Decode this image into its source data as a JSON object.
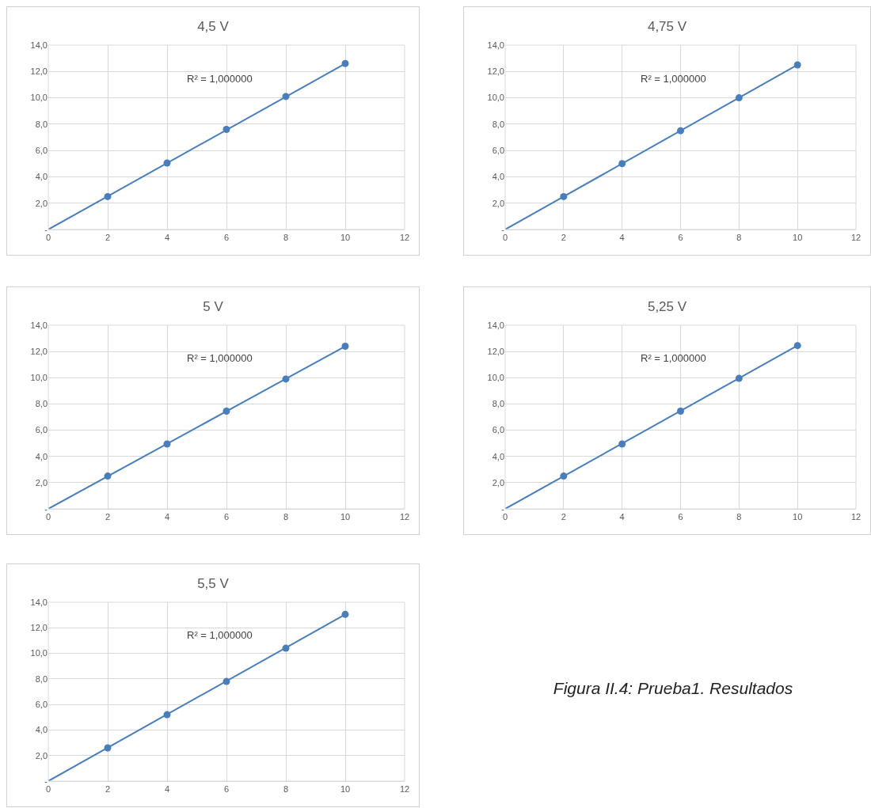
{
  "chart_data": [
    {
      "type": "scatter",
      "title": "4,5 V",
      "grid": true,
      "xlim": [
        0,
        12
      ],
      "xticks": [
        0,
        2,
        4,
        6,
        8,
        10,
        12
      ],
      "ylim": [
        0,
        14
      ],
      "yticks": [
        {
          "value": 0,
          "label": "-"
        },
        {
          "value": 2,
          "label": "2,0"
        },
        {
          "value": 4,
          "label": "4,0"
        },
        {
          "value": 6,
          "label": "6,0"
        },
        {
          "value": 8,
          "label": "8,0"
        },
        {
          "value": 10,
          "label": "10,0"
        },
        {
          "value": 12,
          "label": "12,0"
        },
        {
          "value": 14,
          "label": "14,0"
        }
      ],
      "annotations": [
        "R² = 1,000000"
      ],
      "series": [
        {
          "marker": "circle",
          "color": "#4a7ebb",
          "x": [
            2,
            4,
            6,
            8,
            10
          ],
          "values": [
            2.5,
            5.05,
            7.6,
            10.1,
            12.6
          ]
        },
        {
          "type": "line",
          "marker": "none",
          "color": "#4a7ebb",
          "x": [
            0,
            10
          ],
          "values": [
            0,
            12.6
          ]
        }
      ]
    },
    {
      "type": "scatter",
      "title": "4,75 V",
      "grid": true,
      "xlim": [
        0,
        12
      ],
      "xticks": [
        0,
        2,
        4,
        6,
        8,
        10,
        12
      ],
      "ylim": [
        0,
        14
      ],
      "yticks": [
        {
          "value": 0,
          "label": "-"
        },
        {
          "value": 2,
          "label": "2,0"
        },
        {
          "value": 4,
          "label": "4,0"
        },
        {
          "value": 6,
          "label": "6,0"
        },
        {
          "value": 8,
          "label": "8,0"
        },
        {
          "value": 10,
          "label": "10,0"
        },
        {
          "value": 12,
          "label": "12,0"
        },
        {
          "value": 14,
          "label": "14,0"
        }
      ],
      "annotations": [
        "R² = 1,000000"
      ],
      "series": [
        {
          "marker": "circle",
          "color": "#4a7ebb",
          "x": [
            2,
            4,
            6,
            8,
            10
          ],
          "values": [
            2.5,
            5.0,
            7.5,
            10.0,
            12.5
          ]
        },
        {
          "type": "line",
          "marker": "none",
          "color": "#4a7ebb",
          "x": [
            0,
            10
          ],
          "values": [
            0,
            12.5
          ]
        }
      ]
    },
    {
      "type": "scatter",
      "title": "5 V",
      "grid": true,
      "xlim": [
        0,
        12
      ],
      "xticks": [
        0,
        2,
        4,
        6,
        8,
        10,
        12
      ],
      "ylim": [
        0,
        14
      ],
      "yticks": [
        {
          "value": 0,
          "label": "-"
        },
        {
          "value": 2,
          "label": "2,0"
        },
        {
          "value": 4,
          "label": "4,0"
        },
        {
          "value": 6,
          "label": "6,0"
        },
        {
          "value": 8,
          "label": "8,0"
        },
        {
          "value": 10,
          "label": "10,0"
        },
        {
          "value": 12,
          "label": "12,0"
        },
        {
          "value": 14,
          "label": "14,0"
        }
      ],
      "annotations": [
        "R² = 1,000000"
      ],
      "series": [
        {
          "marker": "circle",
          "color": "#4a7ebb",
          "x": [
            2,
            4,
            6,
            8,
            10
          ],
          "values": [
            2.5,
            4.95,
            7.45,
            9.9,
            12.4
          ]
        },
        {
          "type": "line",
          "marker": "none",
          "color": "#4a7ebb",
          "x": [
            0,
            10
          ],
          "values": [
            0,
            12.4
          ]
        }
      ]
    },
    {
      "type": "scatter",
      "title": "5,25 V",
      "grid": true,
      "xlim": [
        0,
        12
      ],
      "xticks": [
        0,
        2,
        4,
        6,
        8,
        10,
        12
      ],
      "ylim": [
        0,
        14
      ],
      "yticks": [
        {
          "value": 0,
          "label": "-"
        },
        {
          "value": 2,
          "label": "2,0"
        },
        {
          "value": 4,
          "label": "4,0"
        },
        {
          "value": 6,
          "label": "6,0"
        },
        {
          "value": 8,
          "label": "8,0"
        },
        {
          "value": 10,
          "label": "10,0"
        },
        {
          "value": 12,
          "label": "12,0"
        },
        {
          "value": 14,
          "label": "14,0"
        }
      ],
      "annotations": [
        "R² = 1,000000"
      ],
      "series": [
        {
          "marker": "circle",
          "color": "#4a7ebb",
          "x": [
            2,
            4,
            6,
            8,
            10
          ],
          "values": [
            2.5,
            4.95,
            7.45,
            9.95,
            12.45
          ]
        },
        {
          "type": "line",
          "marker": "none",
          "color": "#4a7ebb",
          "x": [
            0,
            10
          ],
          "values": [
            0,
            12.45
          ]
        }
      ]
    },
    {
      "type": "scatter",
      "title": "5,5 V",
      "grid": true,
      "xlim": [
        0,
        12
      ],
      "xticks": [
        0,
        2,
        4,
        6,
        8,
        10,
        12
      ],
      "ylim": [
        0,
        14
      ],
      "yticks": [
        {
          "value": 0,
          "label": "-"
        },
        {
          "value": 2,
          "label": "2,0"
        },
        {
          "value": 4,
          "label": "4,0"
        },
        {
          "value": 6,
          "label": "6,0"
        },
        {
          "value": 8,
          "label": "8,0"
        },
        {
          "value": 10,
          "label": "10,0"
        },
        {
          "value": 12,
          "label": "12,0"
        },
        {
          "value": 14,
          "label": "14,0"
        }
      ],
      "annotations": [
        "R² = 1,000000"
      ],
      "series": [
        {
          "marker": "circle",
          "color": "#4a7ebb",
          "x": [
            2,
            4,
            6,
            8,
            10
          ],
          "values": [
            2.6,
            5.2,
            7.8,
            10.4,
            13.05
          ]
        },
        {
          "type": "line",
          "marker": "none",
          "color": "#4a7ebb",
          "x": [
            0,
            10
          ],
          "values": [
            0,
            13.05
          ]
        }
      ]
    },
    {
      "type": "other",
      "annotations": [
        "Figura II.4: Prueba1. Resultados"
      ]
    }
  ]
}
